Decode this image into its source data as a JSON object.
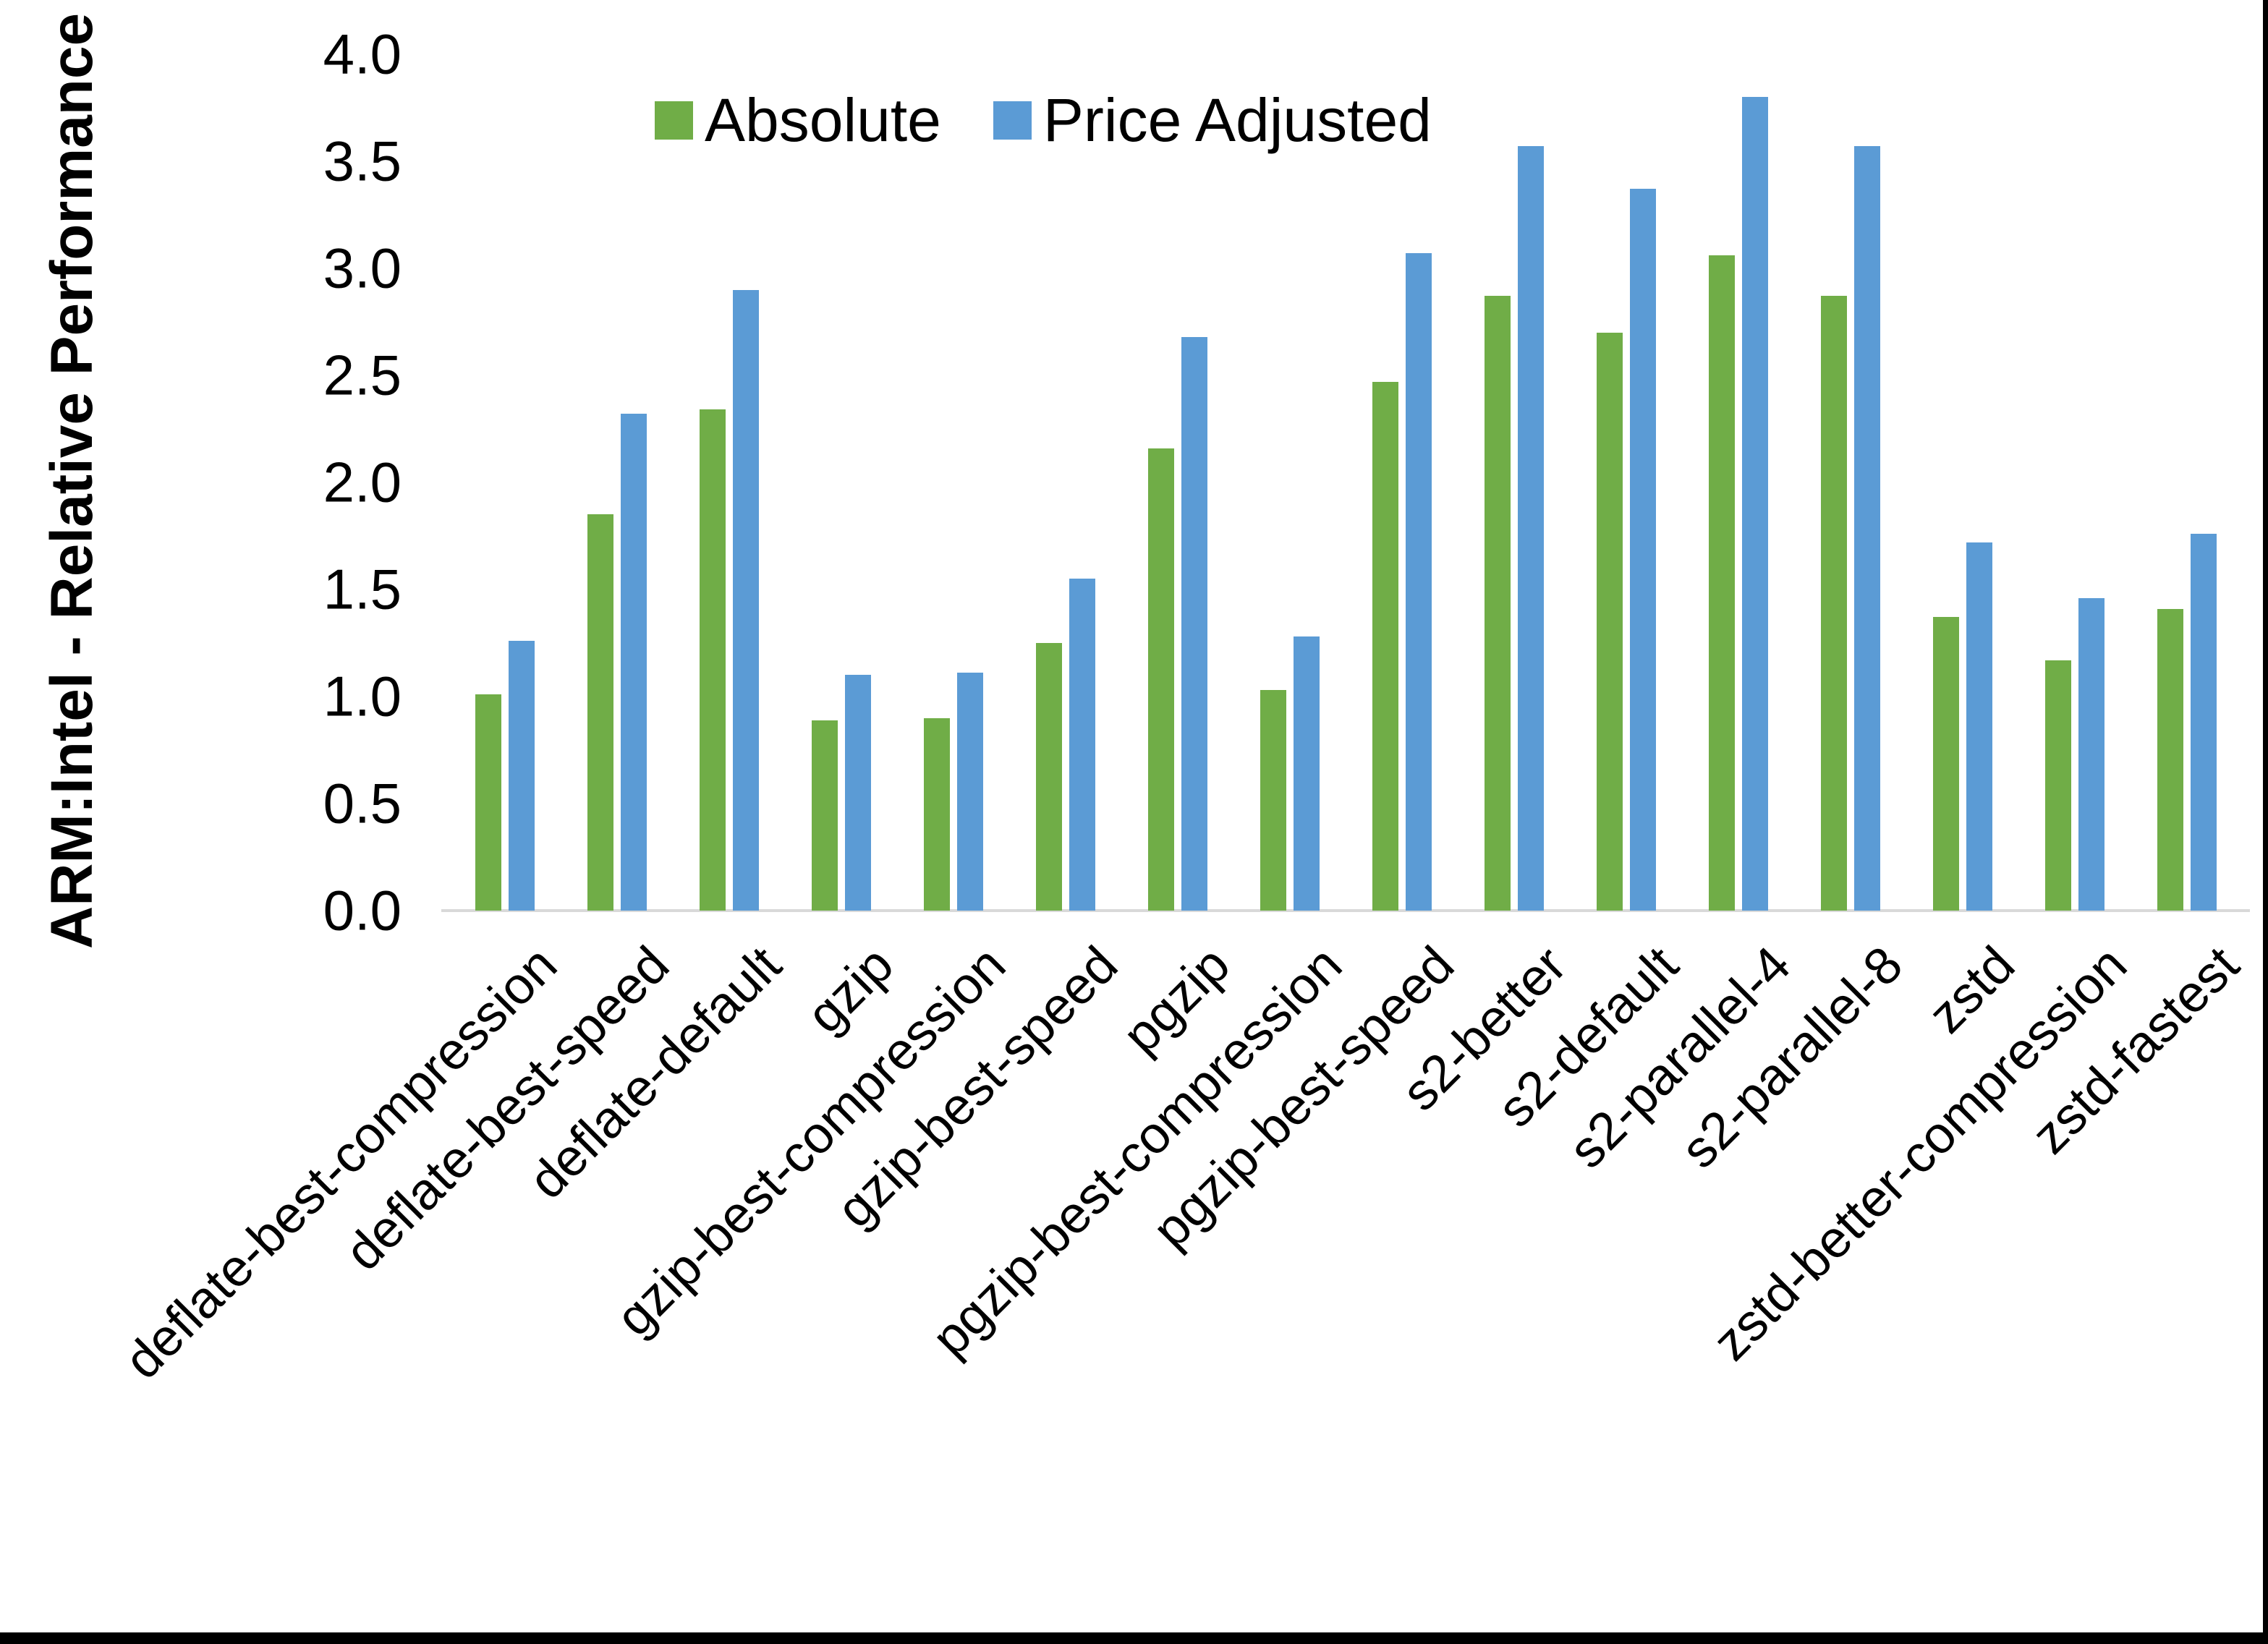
{
  "chart_data": {
    "type": "bar",
    "title": "",
    "ylabel": "ARM:Intel - Relative Performance",
    "xlabel": "",
    "ylim": [
      0.0,
      4.0
    ],
    "ytick_step": 0.5,
    "ytick_labels": [
      "0.0",
      "0.5",
      "1.0",
      "1.5",
      "2.0",
      "2.5",
      "3.0",
      "3.5",
      "4.0"
    ],
    "grid": false,
    "legend_position": "top",
    "categories": [
      "deflate-best-compression",
      "deflate-best-speed",
      "deflate-default",
      "gzip",
      "gzip-best-compression",
      "gzip-best-speed",
      "pgzip",
      "pgzip-best-compression",
      "pgzip-best-speed",
      "s2-better",
      "s2-default",
      "s2-parallel-4",
      "s2-parallel-8",
      "zstd",
      "zstd-better-compression",
      "zstd-fastest"
    ],
    "series": [
      {
        "name": "Absolute",
        "color": "#70AD47",
        "values": [
          1.01,
          1.85,
          2.34,
          0.89,
          0.9,
          1.25,
          2.16,
          1.03,
          2.47,
          2.87,
          2.7,
          3.06,
          2.87,
          1.37,
          1.17,
          1.41
        ]
      },
      {
        "name": "Price Adjusted",
        "color": "#5B9BD5",
        "values": [
          1.26,
          2.32,
          2.9,
          1.1,
          1.11,
          1.55,
          2.68,
          1.28,
          3.07,
          3.57,
          3.37,
          3.8,
          3.57,
          1.72,
          1.46,
          1.76
        ]
      }
    ],
    "colors": {
      "axis_line": "#d9d9d9",
      "text": "#000000",
      "background": "#ffffff",
      "frame": "#000000"
    }
  }
}
